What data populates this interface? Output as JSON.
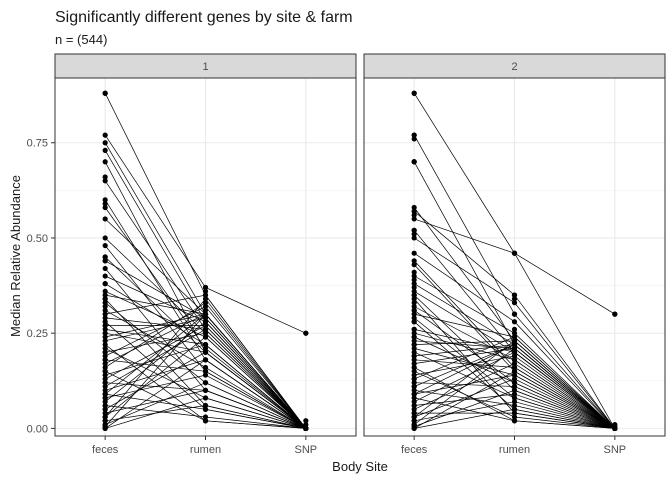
{
  "chart_data": {
    "type": "scatter",
    "title": "Significantly different genes by site & farm",
    "subtitle": "n = (544)",
    "xlabel": "Body Site",
    "ylabel": "Median Relative Abundance",
    "categories": [
      "feces",
      "rumen",
      "SNP"
    ],
    "y_ticks": [
      0.0,
      0.25,
      0.5,
      0.75
    ],
    "y_tick_labels": [
      "0.00",
      "0.25",
      "0.50",
      "0.75"
    ],
    "ylim": [
      -0.02,
      0.92
    ],
    "grid": true,
    "connecting_lines": true,
    "panels": [
      {
        "label": "1",
        "lines": [
          [
            0.88,
            0.35,
            0.0
          ],
          [
            0.77,
            0.37,
            0.25
          ],
          [
            0.75,
            0.3,
            0.0
          ],
          [
            0.73,
            0.28,
            0.0
          ],
          [
            0.7,
            0.2,
            0.0
          ],
          [
            0.65,
            0.26,
            0.0
          ],
          [
            0.6,
            0.18,
            0.0
          ],
          [
            0.55,
            0.3,
            0.0
          ],
          [
            0.5,
            0.25,
            0.0
          ],
          [
            0.48,
            0.15,
            0.0
          ],
          [
            0.45,
            0.2,
            0.0
          ],
          [
            0.42,
            0.1,
            0.0
          ],
          [
            0.4,
            0.28,
            0.0
          ],
          [
            0.38,
            0.22,
            0.0
          ],
          [
            0.35,
            0.3,
            0.0
          ],
          [
            0.33,
            0.12,
            0.0
          ],
          [
            0.3,
            0.35,
            0.0
          ],
          [
            0.28,
            0.05,
            0.0
          ],
          [
            0.27,
            0.27,
            0.0
          ],
          [
            0.25,
            0.2,
            0.0
          ],
          [
            0.23,
            0.29,
            0.0
          ],
          [
            0.21,
            0.08,
            0.0
          ],
          [
            0.2,
            0.25,
            0.0
          ],
          [
            0.18,
            0.15,
            0.0
          ],
          [
            0.17,
            0.3,
            0.0
          ],
          [
            0.15,
            0.02,
            0.0
          ],
          [
            0.14,
            0.22,
            0.0
          ],
          [
            0.12,
            0.1,
            0.0
          ],
          [
            0.11,
            0.26,
            0.0
          ],
          [
            0.1,
            0.18,
            0.0
          ],
          [
            0.09,
            0.05,
            0.0
          ],
          [
            0.08,
            0.14,
            0.0
          ],
          [
            0.07,
            0.28,
            0.0
          ],
          [
            0.06,
            0.03,
            0.0
          ],
          [
            0.05,
            0.2,
            0.0
          ],
          [
            0.04,
            0.1,
            0.0
          ],
          [
            0.03,
            0.24,
            0.0
          ],
          [
            0.02,
            0.06,
            0.0
          ],
          [
            0.01,
            0.12,
            0.0
          ],
          [
            0.005,
            0.3,
            0.0
          ],
          [
            0.0,
            0.18,
            0.0
          ],
          [
            0.0,
            0.08,
            0.0
          ],
          [
            0.26,
            0.22,
            0.0
          ],
          [
            0.31,
            0.16,
            0.0
          ],
          [
            0.19,
            0.32,
            0.0
          ],
          [
            0.13,
            0.27,
            0.0
          ],
          [
            0.36,
            0.24,
            0.0
          ],
          [
            0.44,
            0.29,
            0.0
          ],
          [
            0.58,
            0.21,
            0.0
          ],
          [
            0.24,
            0.3,
            0.0
          ],
          [
            0.16,
            0.33,
            0.0
          ],
          [
            0.29,
            0.26,
            0.0
          ],
          [
            0.22,
            0.02,
            0.0
          ],
          [
            0.09,
            0.3,
            0.0
          ],
          [
            0.34,
            0.06,
            0.0
          ],
          [
            0.03,
            0.34,
            0.0
          ]
        ],
        "extra_points": [
          {
            "x": "feces",
            "y": 0.88
          },
          {
            "x": "feces",
            "y": 0.59
          },
          {
            "x": "feces",
            "y": 0.45
          },
          {
            "x": "feces",
            "y": 0.44
          },
          {
            "x": "feces",
            "y": 0.38
          },
          {
            "x": "feces",
            "y": 0.34
          },
          {
            "x": "feces",
            "y": 0.32
          },
          {
            "x": "feces",
            "y": 0.27
          },
          {
            "x": "feces",
            "y": 0.2
          },
          {
            "x": "feces",
            "y": 0.18
          },
          {
            "x": "feces",
            "y": 0.15
          },
          {
            "x": "feces",
            "y": 0.12
          },
          {
            "x": "feces",
            "y": 0.09
          },
          {
            "x": "feces",
            "y": 0.08
          },
          {
            "x": "feces",
            "y": 0.06
          },
          {
            "x": "feces",
            "y": 0.05
          },
          {
            "x": "feces",
            "y": 0.03
          },
          {
            "x": "feces",
            "y": 0.02
          },
          {
            "x": "feces",
            "y": 0.01
          },
          {
            "x": "feces",
            "y": 0.66
          },
          {
            "x": "rumen",
            "y": 0.37
          },
          {
            "x": "rumen",
            "y": 0.36
          },
          {
            "x": "rumen",
            "y": 0.31
          },
          {
            "x": "rumen",
            "y": 0.29
          },
          {
            "x": "rumen",
            "y": 0.27
          },
          {
            "x": "rumen",
            "y": 0.26
          },
          {
            "x": "rumen",
            "y": 0.25
          },
          {
            "x": "rumen",
            "y": 0.22
          },
          {
            "x": "SNP",
            "y": 0.25
          },
          {
            "x": "SNP",
            "y": 0.02
          },
          {
            "x": "SNP",
            "y": 0.01
          }
        ]
      },
      {
        "label": "2",
        "lines": [
          [
            0.88,
            0.46,
            0.0
          ],
          [
            0.77,
            0.3,
            0.0
          ],
          [
            0.7,
            0.22,
            0.0
          ],
          [
            0.57,
            0.35,
            0.0
          ],
          [
            0.55,
            0.46,
            0.3
          ],
          [
            0.52,
            0.2,
            0.0
          ],
          [
            0.5,
            0.33,
            0.0
          ],
          [
            0.46,
            0.28,
            0.0
          ],
          [
            0.43,
            0.15,
            0.0
          ],
          [
            0.4,
            0.25,
            0.0
          ],
          [
            0.38,
            0.22,
            0.0
          ],
          [
            0.35,
            0.1,
            0.0
          ],
          [
            0.32,
            0.18,
            0.0
          ],
          [
            0.3,
            0.24,
            0.0
          ],
          [
            0.28,
            0.05,
            0.0
          ],
          [
            0.26,
            0.2,
            0.0
          ],
          [
            0.24,
            0.12,
            0.0
          ],
          [
            0.22,
            0.23,
            0.0
          ],
          [
            0.2,
            0.08,
            0.0
          ],
          [
            0.18,
            0.16,
            0.0
          ],
          [
            0.17,
            0.21,
            0.0
          ],
          [
            0.15,
            0.03,
            0.0
          ],
          [
            0.14,
            0.19,
            0.0
          ],
          [
            0.12,
            0.11,
            0.0
          ],
          [
            0.11,
            0.22,
            0.0
          ],
          [
            0.1,
            0.06,
            0.0
          ],
          [
            0.09,
            0.14,
            0.0
          ],
          [
            0.08,
            0.02,
            0.0
          ],
          [
            0.07,
            0.2,
            0.0
          ],
          [
            0.06,
            0.09,
            0.0
          ],
          [
            0.05,
            0.17,
            0.0
          ],
          [
            0.04,
            0.04,
            0.0
          ],
          [
            0.03,
            0.13,
            0.0
          ],
          [
            0.02,
            0.07,
            0.0
          ],
          [
            0.01,
            0.21,
            0.0
          ],
          [
            0.005,
            0.1,
            0.0
          ],
          [
            0.0,
            0.15,
            0.0
          ],
          [
            0.0,
            0.05,
            0.0
          ],
          [
            0.25,
            0.18,
            0.0
          ],
          [
            0.31,
            0.12,
            0.0
          ],
          [
            0.19,
            0.22,
            0.0
          ],
          [
            0.13,
            0.24,
            0.0
          ],
          [
            0.36,
            0.2,
            0.0
          ],
          [
            0.44,
            0.16,
            0.0
          ],
          [
            0.58,
            0.23,
            0.0
          ],
          [
            0.23,
            0.21,
            0.0
          ],
          [
            0.16,
            0.02,
            0.0
          ],
          [
            0.29,
            0.08,
            0.0
          ],
          [
            0.21,
            0.14,
            0.0
          ],
          [
            0.09,
            0.22,
            0.0
          ],
          [
            0.34,
            0.04,
            0.0
          ],
          [
            0.03,
            0.23,
            0.0
          ]
        ],
        "extra_points": [
          {
            "x": "feces",
            "y": 0.88
          },
          {
            "x": "feces",
            "y": 0.77
          },
          {
            "x": "feces",
            "y": 0.7
          },
          {
            "x": "feces",
            "y": 0.57
          },
          {
            "x": "feces",
            "y": 0.56
          },
          {
            "x": "feces",
            "y": 0.52
          },
          {
            "x": "feces",
            "y": 0.51
          },
          {
            "x": "feces",
            "y": 0.41
          },
          {
            "x": "feces",
            "y": 0.39
          },
          {
            "x": "feces",
            "y": 0.37
          },
          {
            "x": "feces",
            "y": 0.35
          },
          {
            "x": "feces",
            "y": 0.33
          },
          {
            "x": "feces",
            "y": 0.31
          },
          {
            "x": "feces",
            "y": 0.28
          },
          {
            "x": "feces",
            "y": 0.26
          },
          {
            "x": "feces",
            "y": 0.24
          },
          {
            "x": "feces",
            "y": 0.22
          },
          {
            "x": "feces",
            "y": 0.19
          },
          {
            "x": "feces",
            "y": 0.16
          },
          {
            "x": "feces",
            "y": 0.13
          },
          {
            "x": "feces",
            "y": 0.11
          },
          {
            "x": "feces",
            "y": 0.09
          },
          {
            "x": "feces",
            "y": 0.06
          },
          {
            "x": "feces",
            "y": 0.04
          },
          {
            "x": "feces",
            "y": 0.02
          },
          {
            "x": "feces",
            "y": 0.01
          },
          {
            "x": "feces",
            "y": 0.76
          },
          {
            "x": "feces",
            "y": 0.7
          },
          {
            "x": "rumen",
            "y": 0.46
          },
          {
            "x": "rumen",
            "y": 0.35
          },
          {
            "x": "rumen",
            "y": 0.34
          },
          {
            "x": "rumen",
            "y": 0.3
          },
          {
            "x": "rumen",
            "y": 0.26
          },
          {
            "x": "rumen",
            "y": 0.24
          },
          {
            "x": "rumen",
            "y": 0.21
          },
          {
            "x": "rumen",
            "y": 0.19
          },
          {
            "x": "SNP",
            "y": 0.3
          },
          {
            "x": "SNP",
            "y": 0.01
          },
          {
            "x": "SNP",
            "y": 0.005
          }
        ]
      }
    ]
  }
}
